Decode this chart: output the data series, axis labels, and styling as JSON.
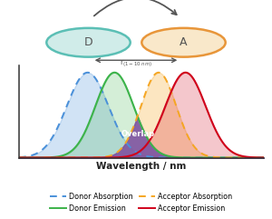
{
  "donor_absorption": {
    "mean": 2.8,
    "std": 0.85,
    "color": "#4a90d9",
    "alpha_fill": 0.25
  },
  "donor_emission": {
    "mean": 3.9,
    "std": 0.78,
    "color": "#3cb34a",
    "alpha_fill": 0.22
  },
  "acceptor_absorption": {
    "mean": 5.7,
    "std": 0.72,
    "color": "#f5a623",
    "alpha_fill": 0.28
  },
  "acceptor_emission": {
    "mean": 6.8,
    "std": 0.82,
    "color": "#d0021b",
    "alpha_fill": 0.22
  },
  "overlap_color": "#7b52a6",
  "overlap_alpha": 0.88,
  "overlap_label_color": "#ffffff",
  "xlabel": "Wavelength / nm",
  "xlabel_fontsize": 7.5,
  "xlabel_fontweight": "bold",
  "donor_circle_edge": "#5bbfb5",
  "donor_circle_face": "#d0ece9",
  "acceptor_circle_edge": "#e8963a",
  "acceptor_circle_face": "#f9e8ca",
  "arrow_color": "#555555",
  "legend_items": [
    {
      "label": "Donor Absorption",
      "color": "#4a90d9",
      "linestyle": "--"
    },
    {
      "label": "Donor Emission",
      "color": "#3cb34a",
      "linestyle": "-"
    },
    {
      "label": "Acceptor Absorption",
      "color": "#f5a623",
      "linestyle": "--"
    },
    {
      "label": "Acceptor Emission",
      "color": "#d0021b",
      "linestyle": "-"
    }
  ],
  "xrange": [
    0,
    10
  ],
  "yrange": [
    0,
    1.08
  ],
  "fig_width": 3.0,
  "fig_height": 2.41,
  "dpi": 100
}
